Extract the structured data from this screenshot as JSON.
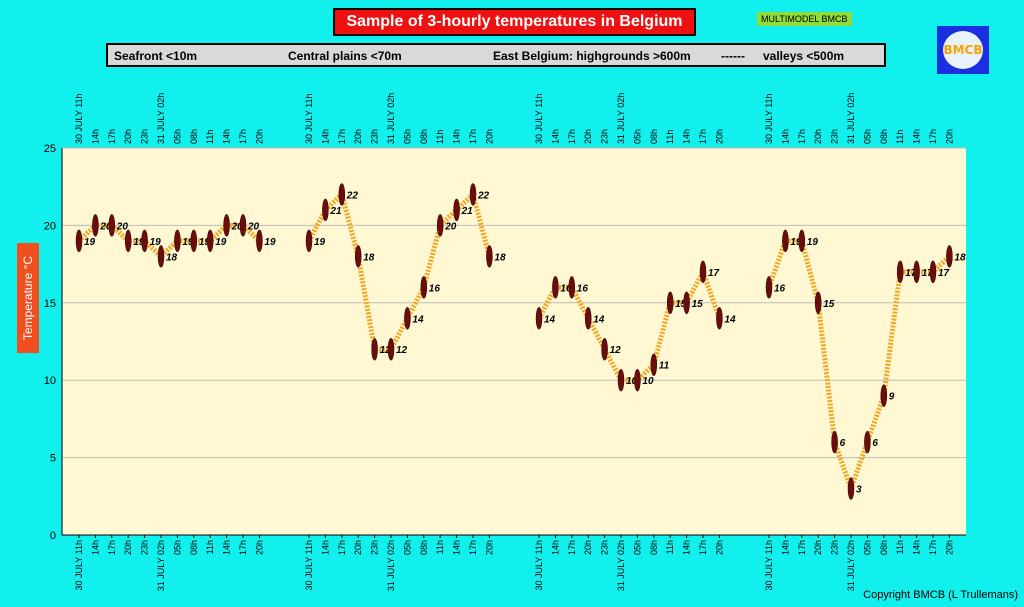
{
  "title": "Sample of 3-hourly temperatures in Belgium",
  "model_tag": "MULTIMODEL BMCB",
  "logo_text": "BMCB",
  "legend": [
    "Seafront <10m",
    "Central plains <70m",
    "East Belgium: highgrounds >600m",
    "------",
    "valleys <500m"
  ],
  "copyright": "Copyright BMCB (L Trullemans)",
  "colors": {
    "background": "#12f0ee",
    "plot_bg": "#fff8d2",
    "line": "#f5a623",
    "marker": "#6b0d0d",
    "title_bg": "#ee1111"
  },
  "chart_data": {
    "type": "line",
    "ylabel": "Temperature  °C",
    "ylim": [
      0,
      25
    ],
    "yticks": [
      0,
      5,
      10,
      15,
      20,
      25
    ],
    "grid": true,
    "x_tick_labels": [
      "30 JULY 11h",
      "14h",
      "17h",
      "20h",
      "23h",
      "31 JULY 02h",
      "05h",
      "08h",
      "11h",
      "14h",
      "17h",
      "20h"
    ],
    "series": [
      {
        "name": "Seafront <10m",
        "values": [
          19,
          20,
          20,
          19,
          19,
          18,
          19,
          19,
          19,
          20,
          20,
          19
        ]
      },
      {
        "name": "Central plains <70m",
        "values": [
          19,
          21,
          22,
          18,
          12,
          12,
          14,
          16,
          20,
          21,
          22,
          18
        ]
      },
      {
        "name": "East Belgium: highgrounds >600m",
        "values": [
          14,
          16,
          16,
          14,
          12,
          10,
          10,
          11,
          15,
          15,
          17,
          14
        ]
      },
      {
        "name": "valleys <500m",
        "values": [
          16,
          19,
          19,
          15,
          6,
          3,
          6,
          9,
          17,
          17,
          17,
          18
        ]
      }
    ]
  }
}
